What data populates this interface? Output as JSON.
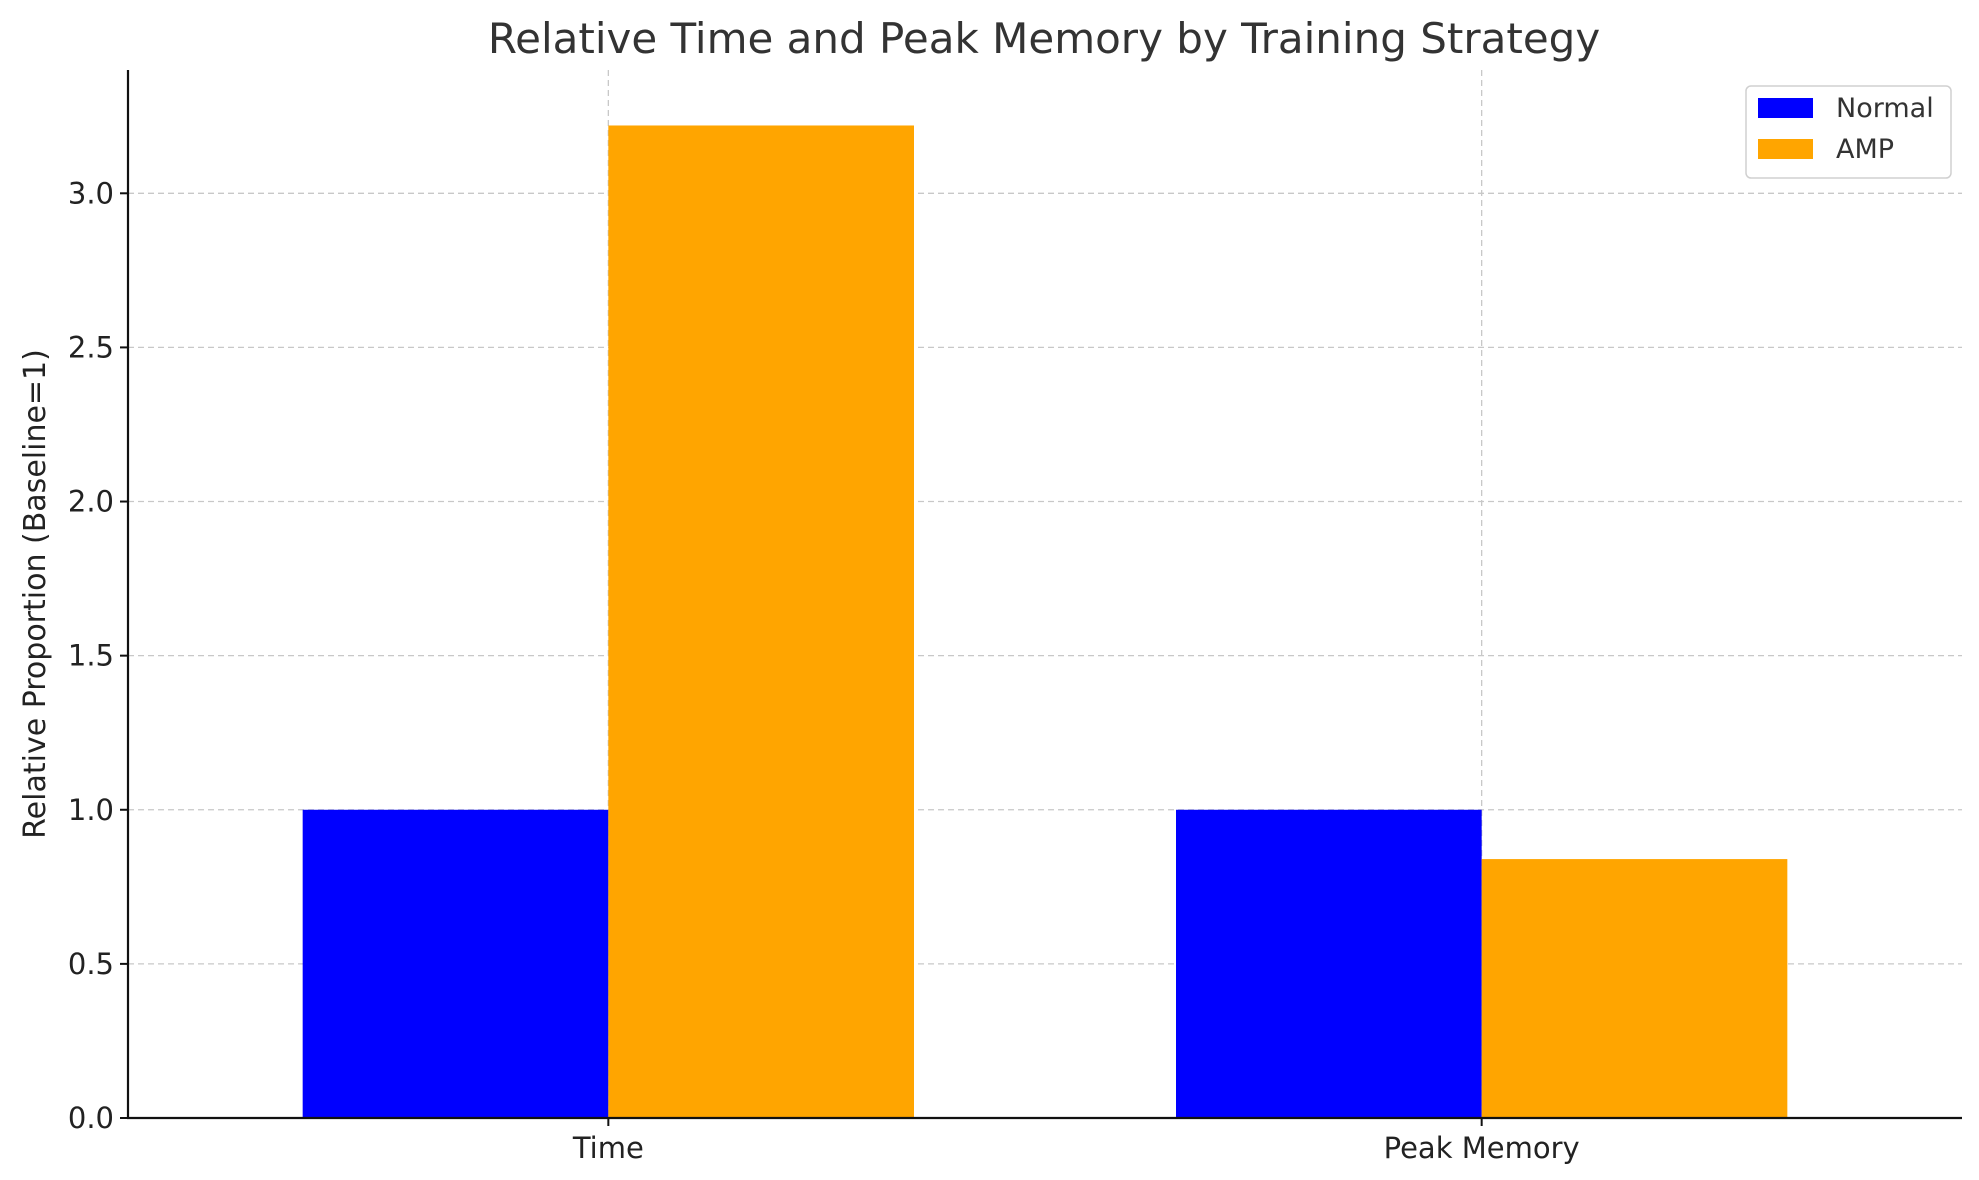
{
  "chart_data": {
    "type": "bar",
    "title": "Relative Time and Peak Memory by Training Strategy",
    "xlabel": "",
    "ylabel": "Relative Proportion (Baseline=1)",
    "categories": [
      "Time",
      "Peak Memory"
    ],
    "series": [
      {
        "name": "Normal",
        "color": "#0000FF",
        "values": [
          1.0,
          1.0
        ]
      },
      {
        "name": "AMP",
        "color": "#FFA500",
        "values": [
          3.22,
          0.84
        ]
      }
    ],
    "ylim": [
      0,
      3.4
    ],
    "yticks": [
      "0.0",
      "0.5",
      "1.0",
      "1.5",
      "2.0",
      "2.5",
      "3.0"
    ],
    "grid": true,
    "legend_position": "top-right"
  }
}
